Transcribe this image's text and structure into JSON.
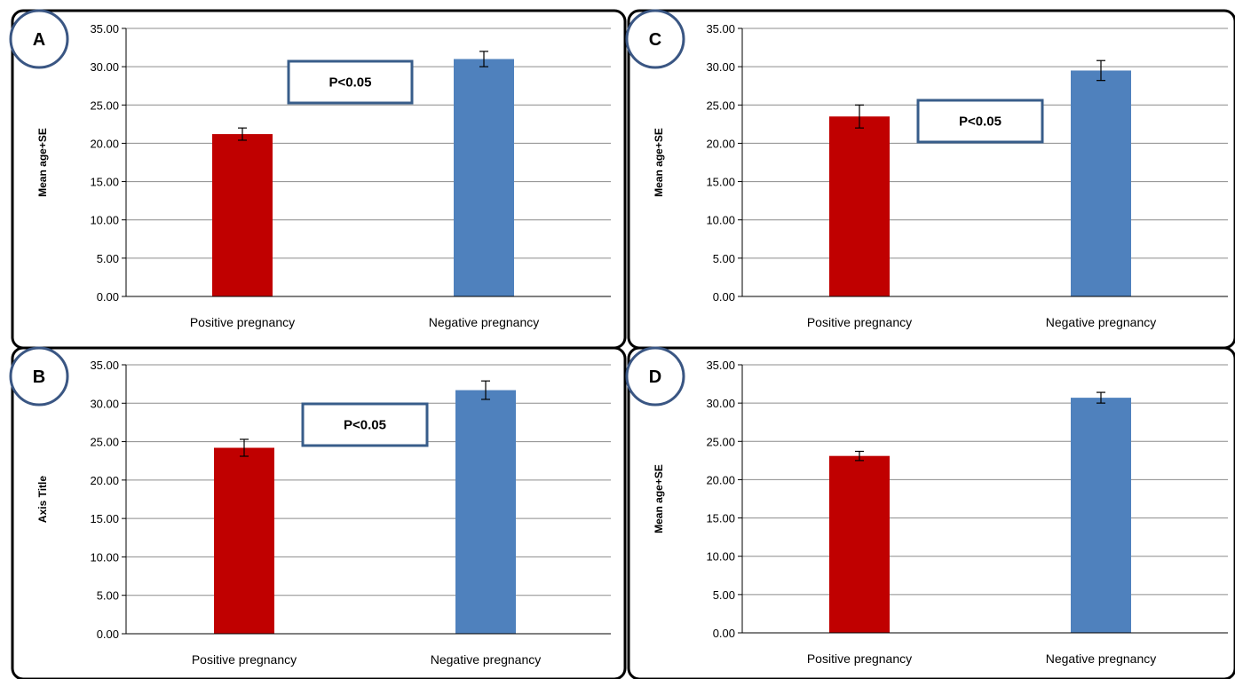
{
  "colors": {
    "positive": "#C00000",
    "negative": "#4F81BD",
    "grid": "#8C8C8C",
    "circle_border": "#3A5683",
    "annotation_border": "#385D8A"
  },
  "chart_data": [
    {
      "type": "bar",
      "panel": "A",
      "categories": [
        "Positive pregnancy",
        "Negative pregnancy"
      ],
      "values": [
        21.2,
        31.0
      ],
      "errors": [
        0.8,
        1.0
      ],
      "ylabel": "Mean age+SE",
      "ylim": [
        0,
        35
      ],
      "yticks": [
        "0.00",
        "5.00",
        "10.00",
        "15.00",
        "20.00",
        "25.00",
        "30.00",
        "35.00"
      ],
      "grid": true,
      "annotation": "P<0.05"
    },
    {
      "type": "bar",
      "panel": "C",
      "categories": [
        "Positive pregnancy",
        "Negative pregnancy"
      ],
      "values": [
        23.5,
        29.5
      ],
      "errors": [
        1.5,
        1.3
      ],
      "ylabel": "Mean age+SE",
      "ylim": [
        0,
        35
      ],
      "yticks": [
        "0.00",
        "5.00",
        "10.00",
        "15.00",
        "20.00",
        "25.00",
        "30.00",
        "35.00"
      ],
      "grid": true,
      "annotation": "P<0.05"
    },
    {
      "type": "bar",
      "panel": "B",
      "categories": [
        "Positive pregnancy",
        "Negative pregnancy"
      ],
      "values": [
        24.2,
        31.7
      ],
      "errors": [
        1.1,
        1.2
      ],
      "ylabel": "Axis Title",
      "ylim": [
        0,
        35
      ],
      "yticks": [
        "0.00",
        "5.00",
        "10.00",
        "15.00",
        "20.00",
        "25.00",
        "30.00",
        "35.00"
      ],
      "grid": true,
      "annotation": "P<0.05"
    },
    {
      "type": "bar",
      "panel": "D",
      "categories": [
        "Positive pregnancy",
        "Negative pregnancy"
      ],
      "values": [
        23.1,
        30.7
      ],
      "errors": [
        0.6,
        0.7
      ],
      "ylabel": "Mean age+SE",
      "ylim": [
        0,
        35
      ],
      "yticks": [
        "0.00",
        "5.00",
        "10.00",
        "15.00",
        "20.00",
        "25.00",
        "30.00",
        "35.00"
      ],
      "grid": true,
      "annotation": ""
    }
  ]
}
